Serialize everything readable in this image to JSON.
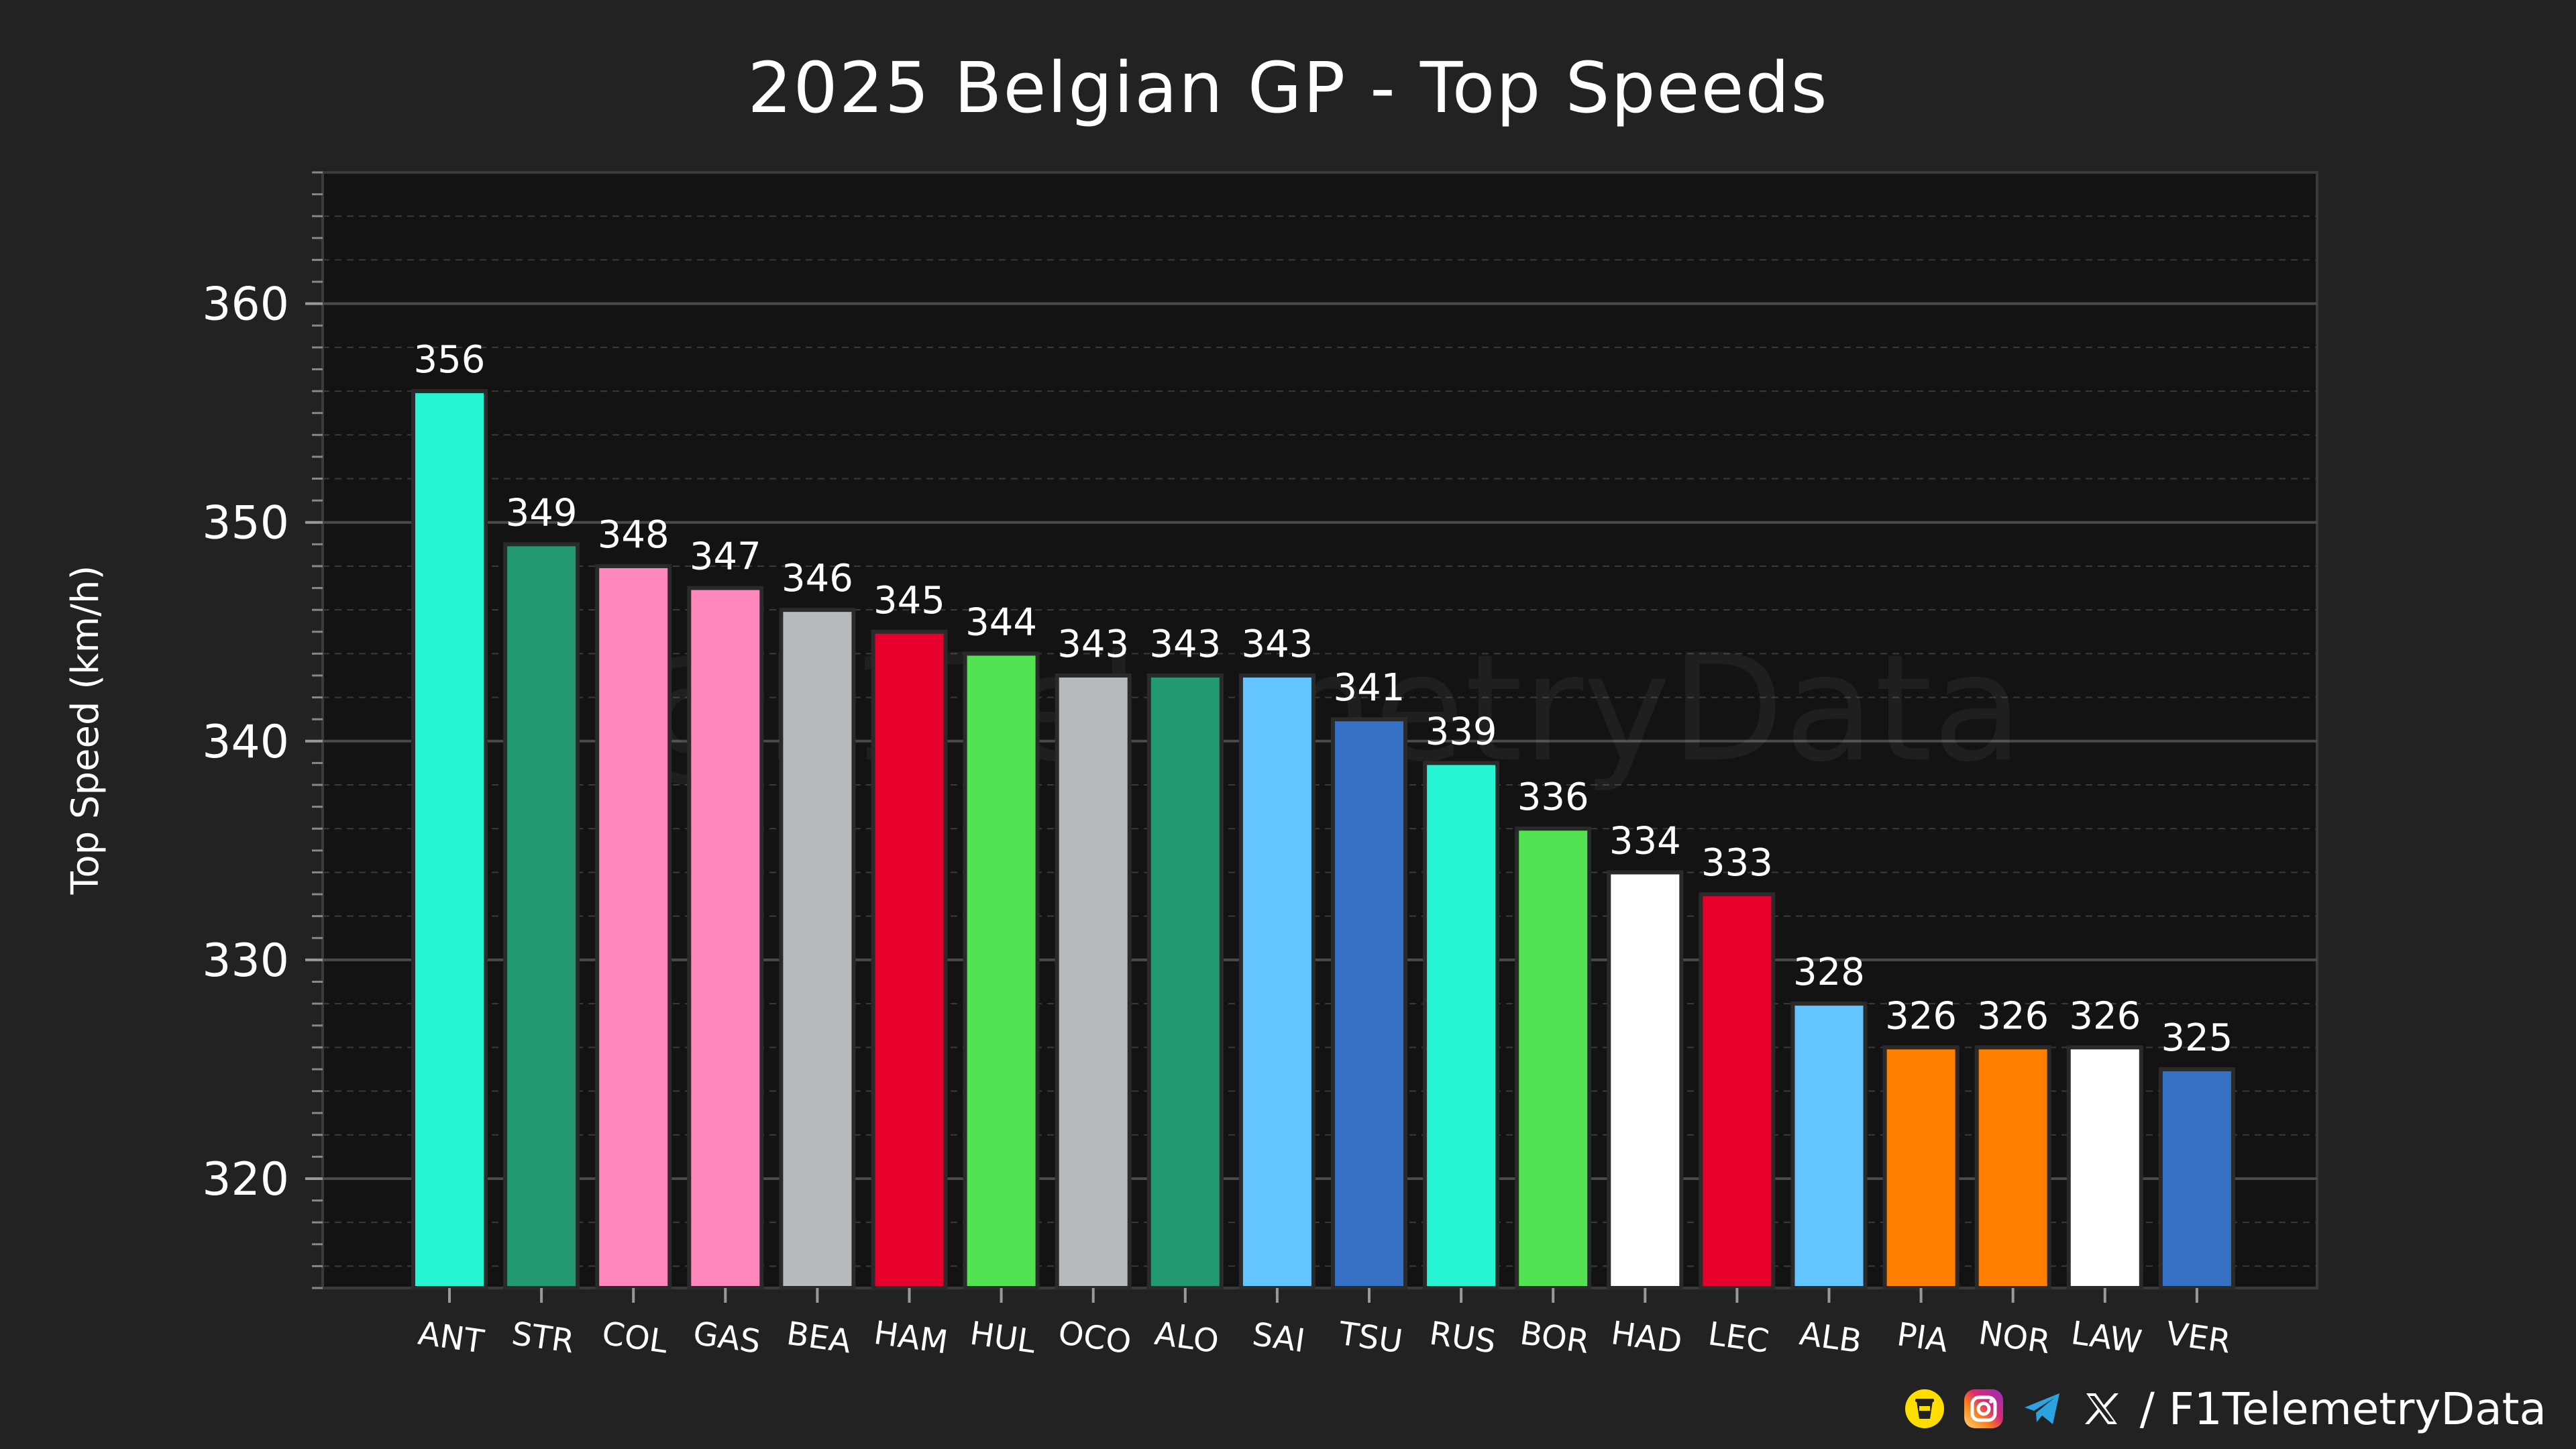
{
  "chart_data": {
    "type": "bar",
    "title": "2025 Belgian GP - Top Speeds",
    "xlabel": "",
    "ylabel": "Top Speed (km/h)",
    "ylim": [
      315,
      366
    ],
    "yticks": [
      320,
      330,
      340,
      350,
      360
    ],
    "grid": true,
    "watermark": "@F1TelemetryData",
    "categories": [
      "ANT",
      "STR",
      "COL",
      "GAS",
      "BEA",
      "HAM",
      "HUL",
      "OCO",
      "ALO",
      "SAI",
      "TSU",
      "RUS",
      "BOR",
      "HAD",
      "LEC",
      "ALB",
      "PIA",
      "NOR",
      "LAW",
      "VER"
    ],
    "values": [
      356,
      349,
      348,
      347,
      346,
      345,
      344,
      343,
      343,
      343,
      341,
      339,
      336,
      334,
      333,
      328,
      326,
      326,
      326,
      325
    ],
    "colors": [
      "#27F4D2",
      "#229971",
      "#FF87BC",
      "#FF87BC",
      "#B6BABD",
      "#E8002D",
      "#52E252",
      "#B6BABD",
      "#229971",
      "#64C4FF",
      "#3671C6",
      "#27F4D2",
      "#52E252",
      "#FFFFFF",
      "#E8002D",
      "#64C4FF",
      "#FF8000",
      "#FF8000",
      "#FFFFFF",
      "#3671C6"
    ]
  },
  "footer": {
    "handle_text": "/ F1TelemetryData",
    "icons": [
      "coffee-icon",
      "instagram-icon",
      "telegram-icon",
      "x-icon"
    ]
  }
}
